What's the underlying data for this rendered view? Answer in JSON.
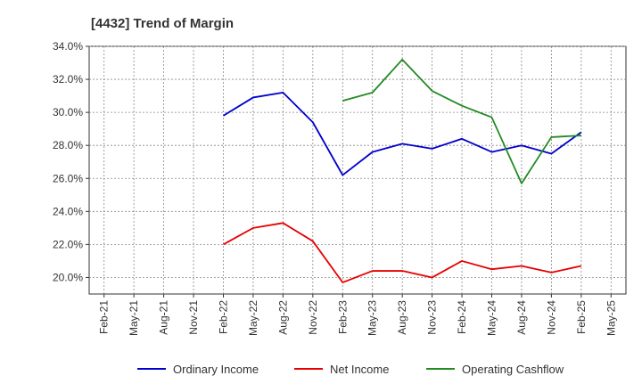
{
  "chart_data": {
    "type": "line",
    "title": "[4432]  Trend of Margin",
    "xlabel": "",
    "ylabel": "",
    "ylim": [
      19.0,
      34.0
    ],
    "yticks": [
      "20.0%",
      "22.0%",
      "24.0%",
      "26.0%",
      "28.0%",
      "30.0%",
      "32.0%",
      "34.0%"
    ],
    "ytick_values": [
      20,
      22,
      24,
      26,
      28,
      30,
      32,
      34
    ],
    "categories": [
      "Feb-21",
      "May-21",
      "Aug-21",
      "Nov-21",
      "Feb-22",
      "May-22",
      "Aug-22",
      "Nov-22",
      "Feb-23",
      "May-23",
      "Aug-23",
      "Nov-23",
      "Feb-24",
      "May-24",
      "Aug-24",
      "Nov-24",
      "Feb-25",
      "May-25"
    ],
    "grid": true,
    "legend_position": "bottom",
    "series": [
      {
        "name": "Ordinary Income",
        "color": "#0000cc",
        "values": [
          null,
          null,
          null,
          null,
          29.8,
          30.9,
          31.2,
          29.4,
          26.2,
          27.6,
          28.1,
          27.8,
          28.4,
          27.6,
          28.0,
          27.5,
          28.8,
          null
        ]
      },
      {
        "name": "Net Income",
        "color": "#e60000",
        "values": [
          null,
          null,
          null,
          null,
          22.0,
          23.0,
          23.3,
          22.2,
          19.7,
          20.4,
          20.4,
          20.0,
          21.0,
          20.5,
          20.7,
          20.3,
          20.7,
          null
        ]
      },
      {
        "name": "Operating Cashflow",
        "color": "#228b22",
        "values": [
          null,
          null,
          null,
          null,
          null,
          null,
          null,
          null,
          30.7,
          31.2,
          33.2,
          31.3,
          30.4,
          29.7,
          25.7,
          28.5,
          28.6,
          null
        ]
      }
    ]
  }
}
